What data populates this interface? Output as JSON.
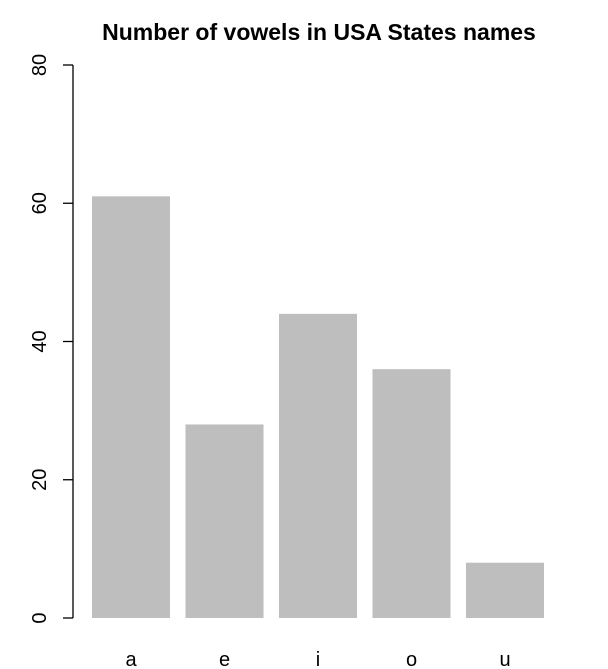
{
  "chart_data": {
    "type": "bar",
    "title": "Number of vowels in USA States names",
    "xlabel": "",
    "ylabel": "",
    "categories": [
      "a",
      "e",
      "i",
      "o",
      "u"
    ],
    "values": [
      61,
      28,
      44,
      36,
      8
    ],
    "ylim": [
      0,
      80
    ],
    "yticks": [
      0,
      20,
      40,
      60,
      80
    ],
    "ytick_labels": [
      "0",
      "20",
      "40",
      "60",
      "80"
    ],
    "bar_color": "#bebebe",
    "grid": false,
    "legend": "none"
  }
}
